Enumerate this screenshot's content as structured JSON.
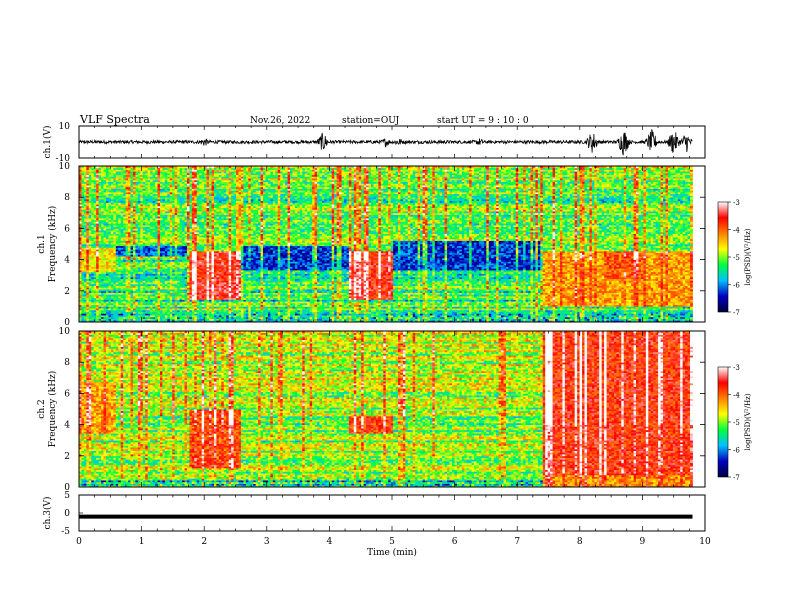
{
  "header": {
    "title": "VLF Spectra",
    "date": "Nov.26, 2022",
    "station": "station=OUJ",
    "start": "start  UT =  9 : 10 : 0"
  },
  "colors": {
    "colormap": [
      "#ffffff",
      "#ff0000",
      "#ff8000",
      "#ffff00",
      "#00ff40",
      "#00c0ff",
      "#0000c0",
      "#000040"
    ]
  },
  "chart_data": [
    {
      "type": "line",
      "panel": "ch1-waveform",
      "ylabel": "ch.1(V)",
      "ylim": [
        -10,
        10
      ],
      "yticks": [
        {
          "value": 10,
          "label": "10"
        },
        {
          "value": -10,
          "label": "-10"
        }
      ],
      "xlim": [
        0,
        10
      ],
      "baseline": 0,
      "bursts": [
        {
          "t": 2.0,
          "amplitude": 3.0
        },
        {
          "t": 3.9,
          "amplitude": 6.5
        },
        {
          "t": 4.9,
          "amplitude": 3.0
        },
        {
          "t": 5.1,
          "amplitude": 3.0
        },
        {
          "t": 6.4,
          "amplitude": 2.5
        },
        {
          "t": 8.2,
          "amplitude": 7.5
        },
        {
          "t": 8.7,
          "amplitude": 9.0
        },
        {
          "t": 9.15,
          "amplitude": 8.0
        },
        {
          "t": 9.5,
          "amplitude": 8.5
        },
        {
          "t": 9.7,
          "amplitude": 7.0
        }
      ]
    },
    {
      "type": "heatmap",
      "panel": "ch1-spectrogram",
      "ylabel": "ch.1\nFrequency  (kHz)",
      "ylim": [
        0,
        10
      ],
      "yticks": [
        0,
        2,
        4,
        6,
        8,
        10
      ],
      "xlim": [
        0,
        10
      ],
      "data_end_min": 9.8,
      "colorbar": {
        "label": "log(PSD)(V²/Hz)",
        "range": [
          -7,
          -3
        ],
        "ticks": [
          -3,
          -4,
          -5,
          -6,
          -7
        ]
      },
      "background_level": -5.3,
      "features": [
        {
          "t0": 0.0,
          "t1": 0.6,
          "f0": 3.2,
          "f1": 4.8,
          "level": -4.6
        },
        {
          "t0": 1.75,
          "t1": 2.6,
          "f0": 1.4,
          "f1": 4.6,
          "level": -3.6
        },
        {
          "t0": 4.3,
          "t1": 5.0,
          "f0": 1.4,
          "f1": 4.6,
          "level": -3.7
        },
        {
          "t0": 7.4,
          "t1": 9.8,
          "f0": 1.0,
          "f1": 4.6,
          "level": -4.3
        },
        {
          "t0": 8.4,
          "t1": 9.0,
          "f0": 2.8,
          "f1": 4.5,
          "level": -3.9
        },
        {
          "t0": 0.6,
          "t1": 1.75,
          "f0": 4.2,
          "f1": 4.9,
          "level": -6.2
        },
        {
          "t0": 2.6,
          "t1": 4.3,
          "f0": 3.3,
          "f1": 4.9,
          "level": -6.3
        },
        {
          "t0": 5.0,
          "t1": 7.4,
          "f0": 3.3,
          "f1": 5.2,
          "level": -6.3
        }
      ]
    },
    {
      "type": "heatmap",
      "panel": "ch2-spectrogram",
      "ylabel": "ch.2\nFrequency  (kHz)",
      "ylim": [
        0,
        10
      ],
      "yticks": [
        0,
        2,
        4,
        6,
        8,
        10
      ],
      "xlim": [
        0,
        10
      ],
      "data_end_min": 9.8,
      "colorbar": {
        "label": "log(PSD)(V²/Hz)",
        "range": [
          -7,
          -3
        ],
        "ticks": [
          -3,
          -4,
          -5,
          -6,
          -7
        ]
      },
      "background_level": -5.0,
      "features": [
        {
          "t0": 0.0,
          "t1": 0.6,
          "f0": 3.5,
          "f1": 6.8,
          "level": -4.3
        },
        {
          "t0": 1.75,
          "t1": 2.6,
          "f0": 1.2,
          "f1": 5.0,
          "level": -3.9
        },
        {
          "t0": 4.3,
          "t1": 5.0,
          "f0": 3.4,
          "f1": 4.6,
          "level": -3.8
        },
        {
          "t0": 7.4,
          "t1": 9.8,
          "f0": 0.8,
          "f1": 10.0,
          "level": -3.7
        },
        {
          "t0": 7.4,
          "t1": 9.8,
          "f0": 0.0,
          "f1": 0.8,
          "level": -4.2
        }
      ]
    },
    {
      "type": "line",
      "panel": "ch3-waveform",
      "ylabel": "ch.3(V)",
      "ylim": [
        -5,
        5
      ],
      "yticks": [
        {
          "value": 5,
          "label": "5"
        },
        {
          "value": 0,
          "label": "0"
        },
        {
          "value": -5,
          "label": "-5"
        }
      ],
      "xlim": [
        0,
        10
      ],
      "constant_value": -1.0,
      "xlabel": "Time  (min)",
      "xticks": [
        0,
        1,
        2,
        3,
        4,
        5,
        6,
        7,
        8,
        9,
        10
      ]
    }
  ]
}
